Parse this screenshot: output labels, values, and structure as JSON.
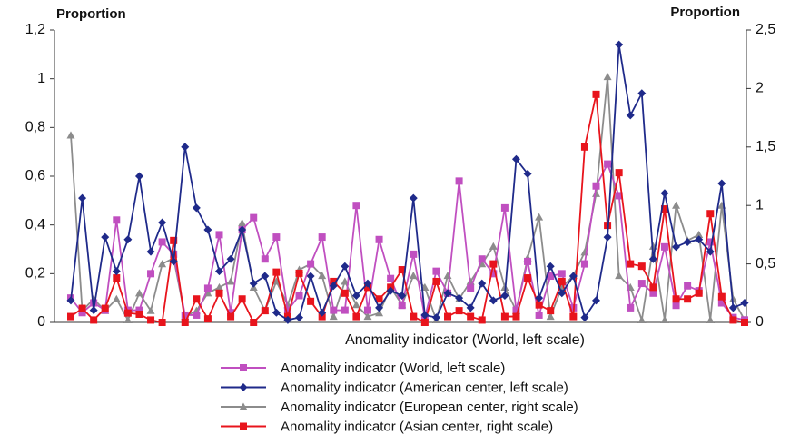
{
  "chart_data": {
    "type": "line",
    "ylabel": "Proportion",
    "y2label": "Proportion",
    "xlabel": "Anomality indicator (World, left scale)",
    "categories": [
      null,
      null,
      null,
      null,
      null,
      null,
      null,
      null,
      null,
      null,
      null,
      null,
      null,
      null,
      null,
      null,
      null,
      null,
      null,
      null,
      null,
      null,
      null,
      null,
      null,
      null,
      null,
      null,
      null,
      null,
      null,
      null,
      null,
      null,
      null,
      null,
      null,
      null,
      null,
      null,
      null,
      null,
      null,
      null,
      null,
      null,
      null,
      null,
      null,
      null,
      null,
      null,
      null,
      null,
      null,
      null,
      null,
      null,
      null,
      null
    ],
    "ylim": [
      0,
      1.2
    ],
    "yticks": [
      0,
      {
        "value": 0.2,
        "label": "0,2"
      },
      {
        "value": 0.4,
        "label": "0,4"
      },
      {
        "value": 0.6,
        "label": "0,6"
      },
      {
        "value": 0.8,
        "label": "0,8"
      },
      1,
      {
        "value": 1.2,
        "label": "1,2"
      }
    ],
    "y2lim": [
      0,
      2.5
    ],
    "y2ticks": [
      0,
      {
        "value": 0.5,
        "label": "0,5"
      },
      1,
      {
        "value": 1.5,
        "label": "1,5"
      },
      2,
      {
        "value": 2.5,
        "label": "2,5"
      }
    ],
    "series": [
      {
        "name": "Anomality indicator (World, left scale)",
        "color": "#c04fc0",
        "marker": "square",
        "values": [
          0.1,
          0.04,
          0.08,
          0.05,
          0.42,
          0.05,
          0.05,
          0.2,
          0.33,
          0.28,
          0.03,
          0.03,
          0.14,
          0.36,
          0.04,
          0.38,
          0.43,
          0.26,
          0.35,
          0.05,
          0.11,
          0.24,
          0.35,
          0.05,
          0.05,
          0.48,
          0.05,
          0.34,
          0.18,
          0.07,
          0.28,
          0.02,
          0.21,
          0.12,
          0.58,
          0.14,
          0.26,
          0.2,
          0.47,
          0.05,
          0.25,
          0.03,
          0.19,
          0.2,
          0.06,
          0.24,
          0.56,
          0.65,
          0.52,
          0.06,
          0.16,
          0.12,
          0.31,
          0.07,
          0.15,
          0.13,
          0.33,
          0.08,
          0.02,
          0.01
        ]
      },
      {
        "name": "Anomality indicator (American center, left scale)",
        "color": "#1f2a8a",
        "marker": "diamond",
        "values": [
          0.09,
          0.51,
          0.05,
          0.35,
          0.21,
          0.34,
          0.6,
          0.29,
          0.41,
          0.25,
          0.72,
          0.47,
          0.38,
          0.21,
          0.26,
          0.38,
          0.16,
          0.19,
          0.04,
          0.01,
          0.02,
          0.19,
          0.04,
          0.15,
          0.23,
          0.11,
          0.16,
          0.06,
          0.13,
          0.11,
          0.51,
          0.03,
          0.02,
          0.12,
          0.1,
          0.06,
          0.16,
          0.09,
          0.11,
          0.67,
          0.61,
          0.1,
          0.23,
          0.12,
          0.19,
          0.02,
          0.09,
          0.35,
          1.14,
          0.85,
          0.94,
          0.26,
          0.53,
          0.31,
          0.33,
          0.34,
          0.29,
          0.57,
          0.06,
          0.08
        ]
      },
      {
        "name": "Anomality indicator (European center, right scale)",
        "color": "#8c8c8c",
        "marker": "triangle",
        "axis": "y2",
        "values": [
          1.6,
          0.1,
          0.2,
          0.1,
          0.2,
          0.02,
          0.25,
          0.1,
          0.5,
          0.55,
          0.05,
          0.1,
          0.25,
          0.3,
          0.35,
          0.85,
          0.3,
          0.1,
          0.35,
          0.15,
          0.45,
          0.5,
          0.4,
          0.05,
          0.35,
          0.15,
          0.05,
          0.08,
          0.3,
          0.15,
          0.4,
          0.3,
          0.02,
          0.4,
          0.2,
          0.35,
          0.5,
          0.65,
          0.3,
          0.1,
          0.55,
          0.9,
          0.05,
          0.3,
          0.4,
          0.6,
          1.1,
          2.1,
          0.4,
          0.3,
          0.02,
          0.65,
          0.02,
          1.0,
          0.7,
          0.75,
          0.02,
          1.0,
          0.2,
          0.02
        ]
      },
      {
        "name": "Anomality indicator (Asian center, right scale)",
        "color": "#e8141c",
        "marker": "square",
        "axis": "y2",
        "values": [
          0.05,
          0.12,
          0.02,
          0.12,
          0.38,
          0.08,
          0.07,
          0.02,
          0.0,
          0.7,
          0.0,
          0.2,
          0.03,
          0.25,
          0.05,
          0.2,
          0.0,
          0.1,
          0.43,
          0.05,
          0.42,
          0.18,
          0.05,
          0.35,
          0.25,
          0.05,
          0.3,
          0.2,
          0.3,
          0.45,
          0.05,
          0.0,
          0.35,
          0.05,
          0.1,
          0.05,
          0.02,
          0.5,
          0.05,
          0.05,
          0.38,
          0.15,
          0.1,
          0.35,
          0.05,
          1.5,
          1.95,
          0.83,
          1.28,
          0.5,
          0.48,
          0.3,
          0.97,
          0.2,
          0.2,
          0.25,
          0.93,
          0.22,
          0.02,
          0.0
        ]
      }
    ]
  }
}
